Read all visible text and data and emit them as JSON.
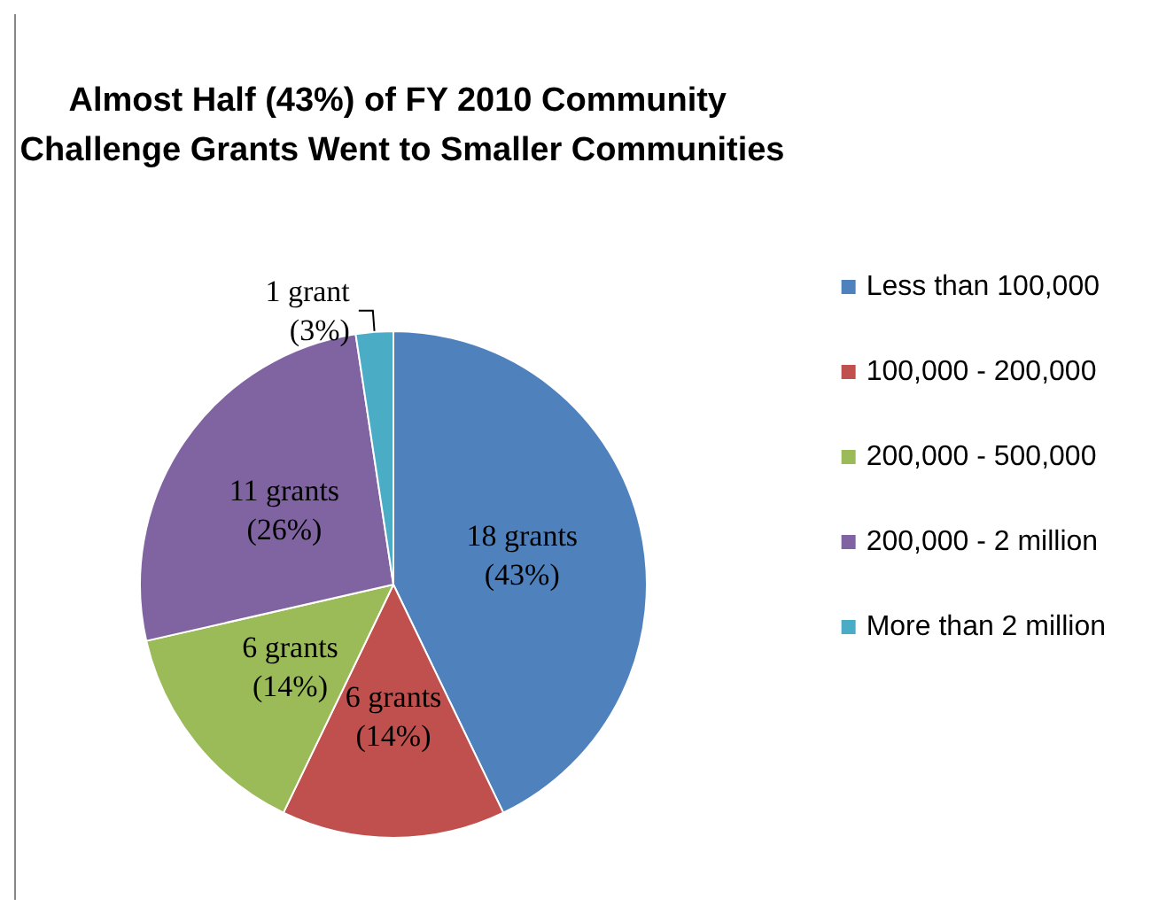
{
  "chart_data": {
    "type": "pie",
    "title": "Almost Half (43%) of FY 2010 Community Challenge Grants Went to Smaller Communities",
    "categories": [
      "Less than 100,000",
      "100,000 - 200,000",
      "200,000 - 500,000",
      "200,000 - 2 million",
      "More than 2 million"
    ],
    "values": [
      18,
      6,
      6,
      11,
      1
    ],
    "colors": [
      "#4f81bd",
      "#c0504d",
      "#9bbb59",
      "#8064a2",
      "#4bacc6"
    ],
    "value_labels": [
      "18 grants\n(43%)",
      "6 grants\n(14%)",
      "6 grants\n(14%)",
      "11 grants\n(26%)",
      "1 grant\n(3%)"
    ],
    "legend": "right"
  }
}
